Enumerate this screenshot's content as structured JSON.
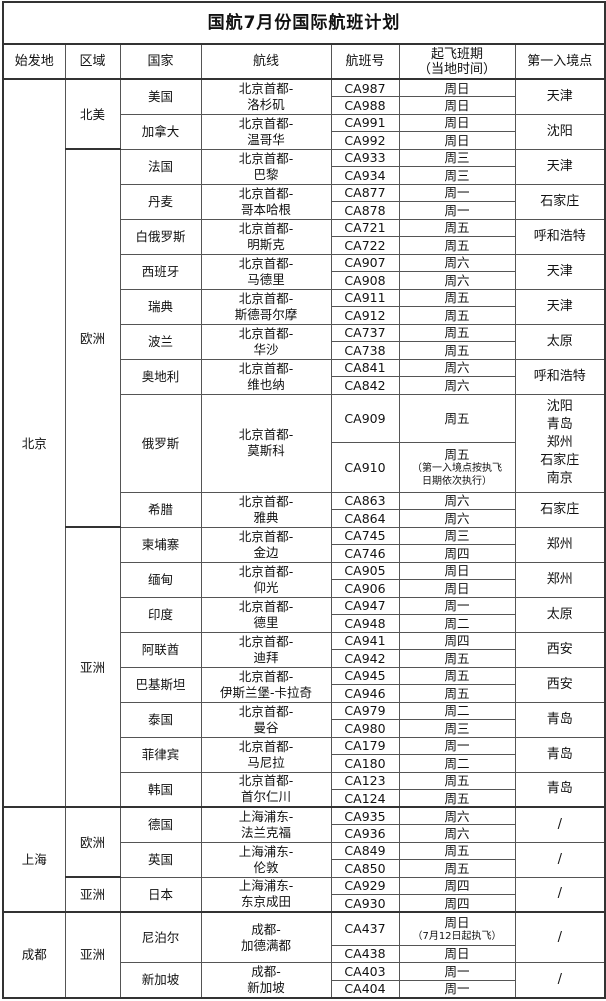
{
  "title": "国航7月份国际航班计划",
  "headers": [
    "始发地",
    "区域",
    "国家",
    "航线",
    "航班号",
    [
      "起飞班期",
      "（当地时间）"
    ],
    "第一入境点"
  ],
  "origins": [
    {
      "name": "北京",
      "regions": [
        {
          "name": "北美",
          "countries": [
            {
              "name": "美国",
              "route": [
                "北京首都-",
                "洛杉矶"
              ],
              "entry": [
                "天津"
              ],
              "flights": [
                {
                  "no": "CA987",
                  "day": "周日"
                },
                {
                  "no": "CA988",
                  "day": "周日"
                }
              ]
            },
            {
              "name": "加拿大",
              "route": [
                "北京首都-",
                "温哥华"
              ],
              "entry": [
                "沈阳"
              ],
              "flights": [
                {
                  "no": "CA991",
                  "day": "周日"
                },
                {
                  "no": "CA992",
                  "day": "周日"
                }
              ]
            }
          ]
        },
        {
          "name": "欧洲",
          "countries": [
            {
              "name": "法国",
              "route": [
                "北京首都-",
                "巴黎"
              ],
              "entry": [
                "天津"
              ],
              "flights": [
                {
                  "no": "CA933",
                  "day": "周三"
                },
                {
                  "no": "CA934",
                  "day": "周三"
                }
              ]
            },
            {
              "name": "丹麦",
              "route": [
                "北京首都-",
                "哥本哈根"
              ],
              "entry": [
                "石家庄"
              ],
              "flights": [
                {
                  "no": "CA877",
                  "day": "周一"
                },
                {
                  "no": "CA878",
                  "day": "周一"
                }
              ]
            },
            {
              "name": "白俄罗斯",
              "route": [
                "北京首都-",
                "明斯克"
              ],
              "entry": [
                "呼和浩特"
              ],
              "flights": [
                {
                  "no": "CA721",
                  "day": "周五"
                },
                {
                  "no": "CA722",
                  "day": "周五"
                }
              ]
            },
            {
              "name": "西班牙",
              "route": [
                "北京首都-",
                "马德里"
              ],
              "entry": [
                "天津"
              ],
              "flights": [
                {
                  "no": "CA907",
                  "day": "周六"
                },
                {
                  "no": "CA908",
                  "day": "周六"
                }
              ]
            },
            {
              "name": "瑞典",
              "route": [
                "北京首都-",
                "斯德哥尔摩"
              ],
              "entry": [
                "天津"
              ],
              "flights": [
                {
                  "no": "CA911",
                  "day": "周五"
                },
                {
                  "no": "CA912",
                  "day": "周五"
                }
              ]
            },
            {
              "name": "波兰",
              "route": [
                "北京首都-",
                "华沙"
              ],
              "entry": [
                "太原"
              ],
              "flights": [
                {
                  "no": "CA737",
                  "day": "周五"
                },
                {
                  "no": "CA738",
                  "day": "周五"
                }
              ]
            },
            {
              "name": "奥地利",
              "route": [
                "北京首都-",
                "维也纳"
              ],
              "entry": [
                "呼和浩特"
              ],
              "flights": [
                {
                  "no": "CA841",
                  "day": "周六"
                },
                {
                  "no": "CA842",
                  "day": "周六"
                }
              ]
            },
            {
              "name": "俄罗斯",
              "route": [
                "北京首都-",
                "莫斯科"
              ],
              "entry": [
                "沈阳",
                "青岛",
                "郑州",
                "石家庄",
                "南京"
              ],
              "flights": [
                {
                  "no": "CA909",
                  "day": "周五"
                },
                {
                  "no": "CA910",
                  "day": "周五",
                  "note": [
                    "（第一入境点按执飞",
                    "日期依次执行）"
                  ]
                }
              ]
            },
            {
              "name": "希腊",
              "route": [
                "北京首都-",
                "雅典"
              ],
              "entry": [
                "石家庄"
              ],
              "flights": [
                {
                  "no": "CA863",
                  "day": "周六"
                },
                {
                  "no": "CA864",
                  "day": "周六"
                }
              ]
            }
          ]
        },
        {
          "name": "亚洲",
          "countries": [
            {
              "name": "柬埔寨",
              "route": [
                "北京首都-",
                "金边"
              ],
              "entry": [
                "郑州"
              ],
              "flights": [
                {
                  "no": "CA745",
                  "day": "周三"
                },
                {
                  "no": "CA746",
                  "day": "周四"
                }
              ]
            },
            {
              "name": "缅甸",
              "route": [
                "北京首都-",
                "仰光"
              ],
              "entry": [
                "郑州"
              ],
              "flights": [
                {
                  "no": "CA905",
                  "day": "周日"
                },
                {
                  "no": "CA906",
                  "day": "周日"
                }
              ]
            },
            {
              "name": "印度",
              "route": [
                "北京首都-",
                "德里"
              ],
              "entry": [
                "太原"
              ],
              "flights": [
                {
                  "no": "CA947",
                  "day": "周一"
                },
                {
                  "no": "CA948",
                  "day": "周二"
                }
              ]
            },
            {
              "name": "阿联酋",
              "route": [
                "北京首都-",
                "迪拜"
              ],
              "entry": [
                "西安"
              ],
              "flights": [
                {
                  "no": "CA941",
                  "day": "周四"
                },
                {
                  "no": "CA942",
                  "day": "周五"
                }
              ]
            },
            {
              "name": "巴基斯坦",
              "route": [
                "北京首都-",
                "伊斯兰堡-卡拉奇"
              ],
              "entry": [
                "西安"
              ],
              "flights": [
                {
                  "no": "CA945",
                  "day": "周五"
                },
                {
                  "no": "CA946",
                  "day": "周五"
                }
              ]
            },
            {
              "name": "泰国",
              "route": [
                "北京首都-",
                "曼谷"
              ],
              "entry": [
                "青岛"
              ],
              "flights": [
                {
                  "no": "CA979",
                  "day": "周二"
                },
                {
                  "no": "CA980",
                  "day": "周三"
                }
              ]
            },
            {
              "name": "菲律宾",
              "route": [
                "北京首都-",
                "马尼拉"
              ],
              "entry": [
                "青岛"
              ],
              "flights": [
                {
                  "no": "CA179",
                  "day": "周一"
                },
                {
                  "no": "CA180",
                  "day": "周二"
                }
              ]
            },
            {
              "name": "韩国",
              "route": [
                "北京首都-",
                "首尔仁川"
              ],
              "entry": [
                "青岛"
              ],
              "flights": [
                {
                  "no": "CA123",
                  "day": "周五"
                },
                {
                  "no": "CA124",
                  "day": "周五"
                }
              ]
            }
          ]
        }
      ]
    },
    {
      "name": "上海",
      "regions": [
        {
          "name": "欧洲",
          "countries": [
            {
              "name": "德国",
              "route": [
                "上海浦东-",
                "法兰克福"
              ],
              "entry": [
                "/"
              ],
              "flights": [
                {
                  "no": "CA935",
                  "day": "周六"
                },
                {
                  "no": "CA936",
                  "day": "周六"
                }
              ]
            },
            {
              "name": "英国",
              "route": [
                "上海浦东-",
                "伦敦"
              ],
              "entry": [
                "/"
              ],
              "flights": [
                {
                  "no": "CA849",
                  "day": "周五"
                },
                {
                  "no": "CA850",
                  "day": "周五"
                }
              ]
            }
          ]
        },
        {
          "name": "亚洲",
          "countries": [
            {
              "name": "日本",
              "route": [
                "上海浦东-",
                "东京成田"
              ],
              "entry": [
                "/"
              ],
              "flights": [
                {
                  "no": "CA929",
                  "day": "周四"
                },
                {
                  "no": "CA930",
                  "day": "周四"
                }
              ]
            }
          ]
        }
      ]
    },
    {
      "name": "成都",
      "regions": [
        {
          "name": "亚洲",
          "countries": [
            {
              "name": "尼泊尔",
              "route": [
                "成都-",
                "加德满都"
              ],
              "entry": [
                "/"
              ],
              "flights": [
                {
                  "no": "CA437",
                  "day": "周日",
                  "note": [
                    "（7月12日起执飞）"
                  ]
                },
                {
                  "no": "CA438",
                  "day": "周日"
                }
              ]
            },
            {
              "name": "新加坡",
              "route": [
                "成都-",
                "新加坡"
              ],
              "entry": [
                "/"
              ],
              "flights": [
                {
                  "no": "CA403",
                  "day": "周一"
                },
                {
                  "no": "CA404",
                  "day": "周一"
                }
              ]
            }
          ]
        }
      ]
    }
  ]
}
